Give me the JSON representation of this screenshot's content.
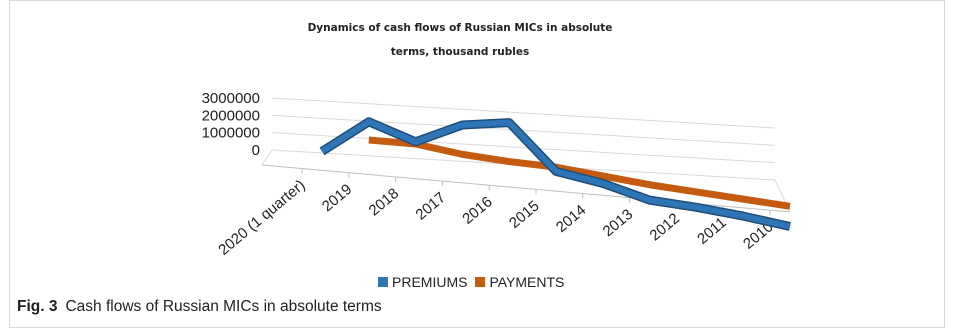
{
  "chart_data": {
    "type": "line",
    "title": "Dynamics of cash flows of Russian MICs in absolute",
    "title_line2": "terms, thousand rubles",
    "categories": [
      "2020 (1 quarter)",
      "2019",
      "2018",
      "2017",
      "2016",
      "2015",
      "2014",
      "2013",
      "2012",
      "2011",
      "2010"
    ],
    "series": [
      {
        "name": "PREMIUMS",
        "color": "#2e75b6",
        "values": [
          0,
          2100000,
          1100000,
          2400000,
          2800000,
          0,
          -500000,
          -1300000,
          -1500000,
          -1800000,
          -2200000
        ]
      },
      {
        "name": "PAYMENTS",
        "color": "#c55a11",
        "values": [
          null,
          400000,
          400000,
          0,
          -200000,
          -300000,
          -600000,
          -900000,
          -1100000,
          -1300000,
          -1500000
        ]
      }
    ],
    "yticks": [
      "3000000",
      "2000000",
      "1000000",
      "0"
    ],
    "legend_position": "bottom",
    "grid": true
  },
  "caption": {
    "label": "Fig. 3",
    "text": "Cash flows of Russian MICs in absolute terms"
  }
}
